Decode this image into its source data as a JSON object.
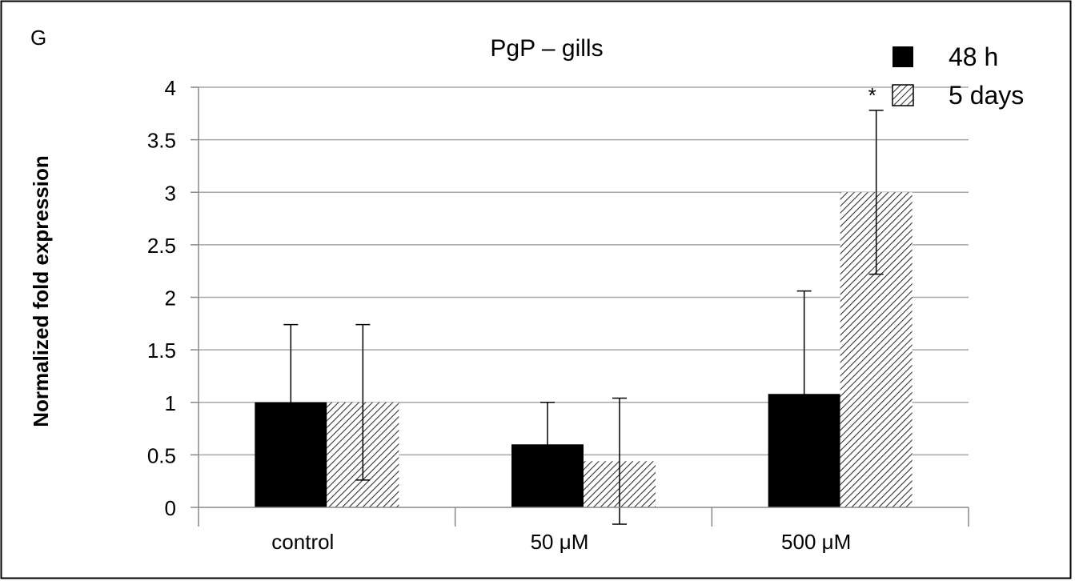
{
  "panel_label": "G",
  "chart_data": {
    "type": "bar",
    "title": "PgP – gills",
    "ylabel": "Normalized fold expression",
    "xlabel": "",
    "categories": [
      "control",
      "50 μM",
      "500 μM"
    ],
    "series": [
      {
        "name": "48 h",
        "fill": "solid",
        "color": "#000000",
        "values": [
          1.0,
          0.6,
          1.08
        ],
        "error": [
          0.74,
          0.4,
          0.98
        ],
        "annotations": [
          "",
          "",
          ""
        ]
      },
      {
        "name": "5 days",
        "fill": "diagonal-hatch",
        "color": "#333333",
        "values": [
          1.0,
          0.44,
          3.0
        ],
        "error": [
          0.74,
          0.6,
          0.78
        ],
        "annotations": [
          "",
          "",
          "*"
        ]
      }
    ],
    "ylim": [
      0,
      4
    ],
    "yticks": [
      "0",
      "0.5",
      "1",
      "1.5",
      "2",
      "2.5",
      "3",
      "3.5",
      "4"
    ],
    "grid": true,
    "legend_position": "top-right"
  }
}
